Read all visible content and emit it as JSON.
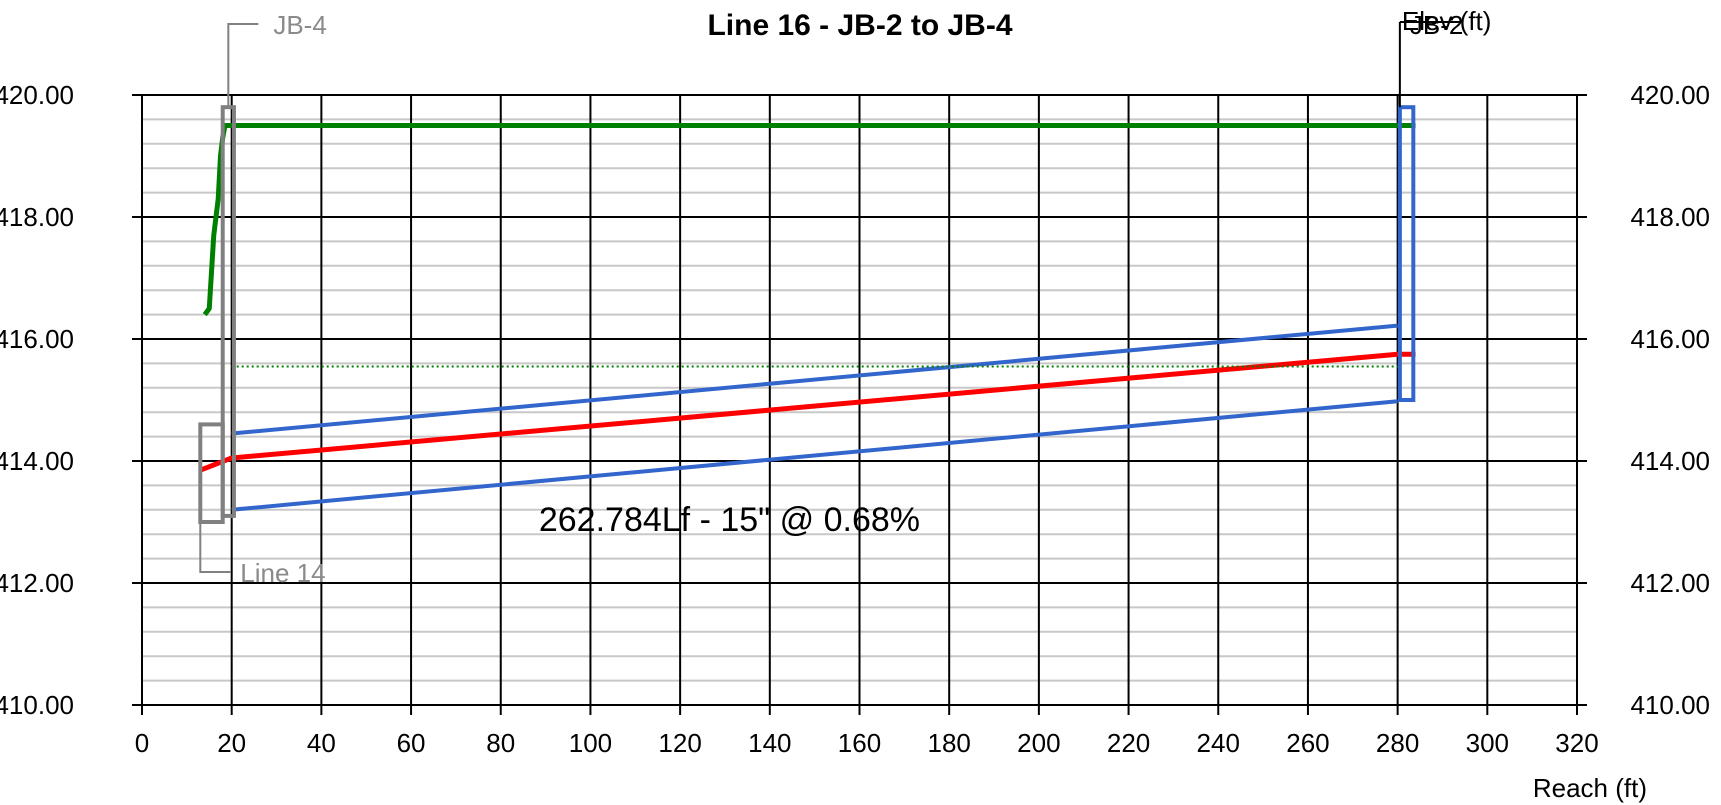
{
  "chart_data": {
    "type": "line",
    "title": "Line 16 - JB-2 to JB-4",
    "xlabel": "Reach (ft)",
    "ylabel": "Elev (ft)",
    "xlim": [
      0,
      320
    ],
    "ylim": [
      410,
      420
    ],
    "x_ticks": [
      "0",
      "20",
      "40",
      "60",
      "80",
      "100",
      "120",
      "140",
      "160",
      "180",
      "200",
      "220",
      "240",
      "260",
      "280",
      "300",
      "320"
    ],
    "y_ticks": [
      "410.00",
      "412.00",
      "414.00",
      "416.00",
      "418.00",
      "420.00"
    ],
    "grid": true,
    "pipe": {
      "label": "262.784Lf - 15\" @ 0.68%",
      "x_start": 20,
      "x_end": 280,
      "crown_start": 414.45,
      "crown_end": 416.22,
      "invert_start": 413.2,
      "invert_end": 414.98
    },
    "series": [
      {
        "color": "#ff0000",
        "points": [
          [
            13,
            413.85
          ],
          [
            20,
            414.05
          ],
          [
            280,
            415.75
          ],
          [
            284,
            415.75
          ]
        ]
      },
      {
        "color": "#008000",
        "points": [
          [
            14,
            416.4
          ],
          [
            15,
            416.5
          ],
          [
            16,
            417.7
          ],
          [
            17,
            418.3
          ],
          [
            17.5,
            419.0
          ],
          [
            18,
            419.3
          ],
          [
            18.5,
            419.5
          ],
          [
            284,
            419.5
          ]
        ]
      },
      {
        "color": "#008000",
        "dotted": true,
        "points": [
          [
            20,
            415.55
          ],
          [
            280,
            415.55
          ]
        ]
      }
    ],
    "structures": [
      {
        "name": "JB-4",
        "type": "junction",
        "color": "#808080",
        "x_left": 18,
        "x_right": 20.5,
        "top": 419.8,
        "bottom": 413.1
      },
      {
        "name": "JB-2",
        "type": "junction",
        "color": "#3366cc",
        "x_left": 280.5,
        "x_right": 283.5,
        "top": 419.8,
        "bottom": 415.0
      },
      {
        "name": "Line 14",
        "type": "upstream-pipe",
        "color": "#808080",
        "x_left": 13,
        "x_right": 18,
        "top": 414.6,
        "bottom": 413.0
      }
    ],
    "axis_ticks": {
      "left_label_style": "both-sides"
    }
  }
}
